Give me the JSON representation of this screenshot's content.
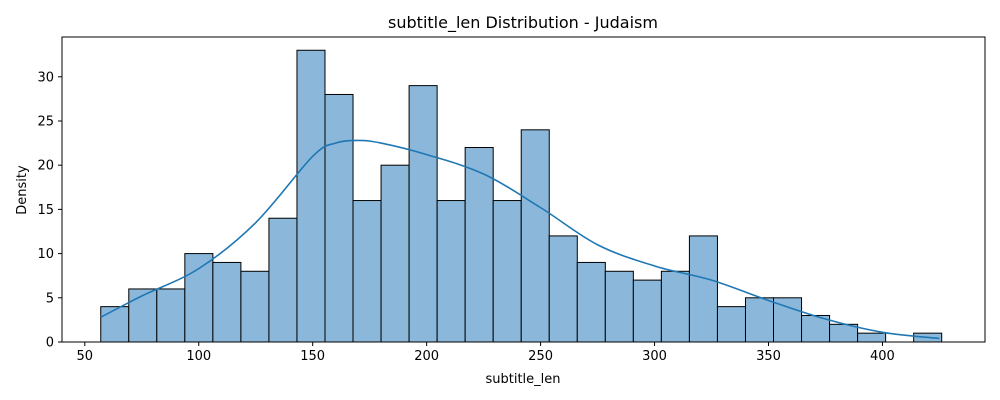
{
  "chart_data": {
    "type": "bar",
    "title": "subtitle_len Distribution - Judaism",
    "xlabel": "subtitle_len",
    "ylabel": "Density",
    "xlim": [
      40,
      445
    ],
    "ylim": [
      0,
      34.5
    ],
    "x_ticks": [
      50,
      100,
      150,
      200,
      250,
      300,
      350,
      400
    ],
    "y_ticks": [
      0,
      5,
      10,
      15,
      20,
      25,
      30
    ],
    "grid": false,
    "bin_start": 57,
    "bin_width": 12.3,
    "counts": [
      4,
      6,
      6,
      10,
      9,
      8,
      14,
      33,
      28,
      16,
      20,
      29,
      16,
      22,
      16,
      24,
      12,
      9,
      8,
      7,
      8,
      12,
      4,
      5,
      5,
      3,
      2,
      1,
      0,
      1
    ],
    "kde": {
      "x": [
        57,
        75,
        100,
        125,
        150,
        160,
        170,
        180,
        200,
        225,
        250,
        275,
        300,
        325,
        350,
        375,
        400,
        425
      ],
      "y": [
        2.8,
        5.2,
        8.3,
        13.5,
        21.0,
        22.5,
        22.8,
        22.5,
        21.2,
        19.0,
        15.2,
        11.0,
        8.6,
        7.0,
        4.7,
        2.6,
        1.1,
        0.4
      ]
    },
    "colors": {
      "bar_fill": "#8bb8da",
      "bar_edge": "#000000",
      "kde_line": "#1f77b4"
    }
  }
}
